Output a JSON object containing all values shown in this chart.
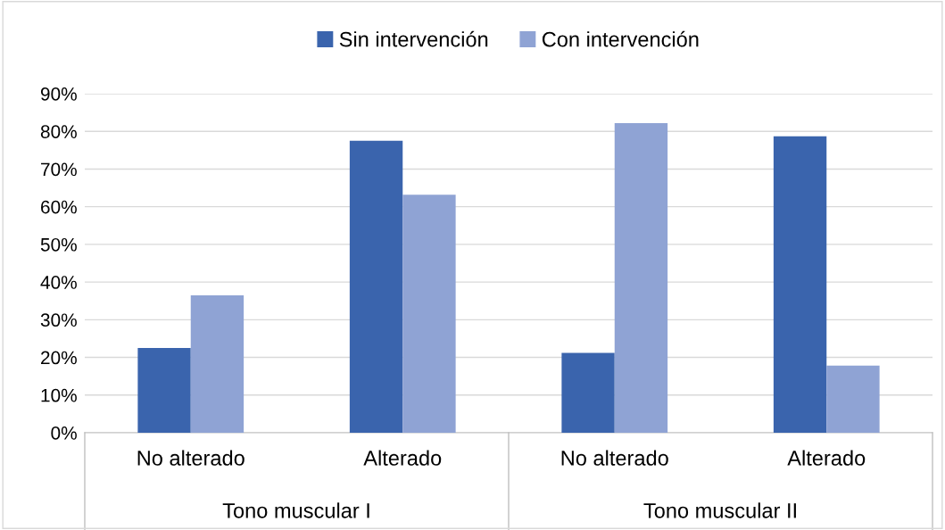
{
  "chart_data": {
    "type": "bar",
    "categories": [
      "No alterado",
      "Alterado",
      "No alterado",
      "Alterado"
    ],
    "series": [
      {
        "name": "Sin intervención",
        "color": "#3a64ad",
        "values": [
          22.5,
          77.5,
          21.2,
          78.7
        ]
      },
      {
        "name": "Con intervención",
        "color": "#8fa3d4",
        "values": [
          36.5,
          63.2,
          82.2,
          17.8
        ]
      }
    ],
    "ylim": [
      0,
      90
    ],
    "yticks": [
      {
        "value": 0,
        "label": "0%"
      },
      {
        "value": 10,
        "label": "10%"
      },
      {
        "value": 20,
        "label": "20%"
      },
      {
        "value": 30,
        "label": "30%"
      },
      {
        "value": 40,
        "label": "40%"
      },
      {
        "value": 50,
        "label": "50%"
      },
      {
        "value": 60,
        "label": "60%"
      },
      {
        "value": 70,
        "label": "70%"
      },
      {
        "value": 80,
        "label": "80%"
      },
      {
        "value": 90,
        "label": "90%"
      }
    ],
    "annotations": [
      "Tono muscular I",
      "Tono muscular II"
    ],
    "grid": "y",
    "legend": "top"
  }
}
